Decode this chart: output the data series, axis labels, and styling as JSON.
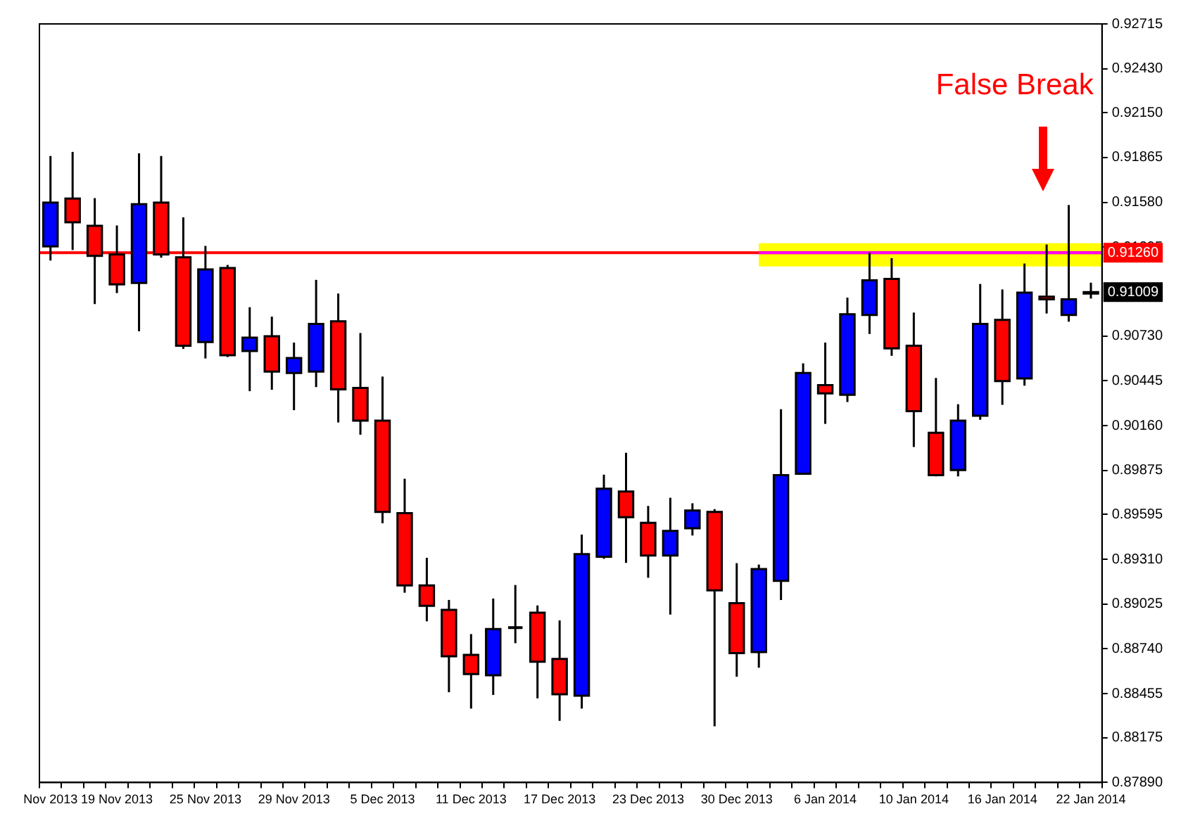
{
  "chart_data": {
    "type": "candlestick",
    "categories": [
      "Nov 2013",
      null,
      null,
      "19 Nov 2013",
      null,
      null,
      null,
      "25 Nov 2013",
      null,
      null,
      null,
      "29 Nov 2013",
      null,
      null,
      null,
      "5 Dec 2013",
      null,
      null,
      null,
      "11 Dec 2013",
      null,
      null,
      null,
      "17 Dec 2013",
      null,
      null,
      null,
      "23 Dec 2013",
      null,
      null,
      null,
      "30 Dec 2013",
      null,
      null,
      null,
      "6 Jan 2014",
      null,
      null,
      null,
      "10 Jan 2014",
      null,
      null,
      null,
      "16 Jan 2014",
      null,
      null,
      null,
      "22 Jan 2014"
    ],
    "ohlc": [
      [
        0.913,
        0.91875,
        0.9121,
        0.91578
      ],
      [
        0.91604,
        0.91901,
        0.91277,
        0.91453
      ],
      [
        0.91431,
        0.91607,
        0.90933,
        0.9124
      ],
      [
        0.91249,
        0.91433,
        0.91003,
        0.91058
      ],
      [
        0.91067,
        0.91892,
        0.9076,
        0.91569
      ],
      [
        0.91578,
        0.91875,
        0.91228,
        0.91249
      ],
      [
        0.91231,
        0.91485,
        0.90648,
        0.90668
      ],
      [
        0.90691,
        0.91303,
        0.90587,
        0.91153
      ],
      [
        0.91162,
        0.91182,
        0.90596,
        0.90608
      ],
      [
        0.90634,
        0.90913,
        0.90379,
        0.9072
      ],
      [
        0.90729,
        0.90853,
        0.90388,
        0.90504
      ],
      [
        0.90495,
        0.90688,
        0.90258,
        0.9059
      ],
      [
        0.90504,
        0.91087,
        0.90405,
        0.90807
      ],
      [
        0.90824,
        0.91,
        0.9018,
        0.90391
      ],
      [
        0.904,
        0.90749,
        0.90102,
        0.90192
      ],
      [
        0.90192,
        0.90472,
        0.89539,
        0.89611
      ],
      [
        0.89603,
        0.89822,
        0.89097,
        0.89144
      ],
      [
        0.89144,
        0.89319,
        0.88915,
        0.89014
      ],
      [
        0.88988,
        0.89051,
        0.88464,
        0.88693
      ],
      [
        0.88702,
        0.88834,
        0.8836,
        0.8858
      ],
      [
        0.88572,
        0.8906,
        0.88447,
        0.88866
      ],
      [
        0.88875,
        0.89146,
        0.88776,
        0.88875
      ],
      [
        0.8897,
        0.89016,
        0.88425,
        0.88658
      ],
      [
        0.88676,
        0.88921,
        0.88282,
        0.88451
      ],
      [
        0.88442,
        0.89467,
        0.8836,
        0.89343
      ],
      [
        0.89326,
        0.89848,
        0.89313,
        0.89759
      ],
      [
        0.89741,
        0.89987,
        0.89287,
        0.89577
      ],
      [
        0.89542,
        0.89649,
        0.89192,
        0.89334
      ],
      [
        0.89334,
        0.89701,
        0.88958,
        0.8949
      ],
      [
        0.89507,
        0.89666,
        0.89461,
        0.8962
      ],
      [
        0.89611,
        0.89629,
        0.88248,
        0.89112
      ],
      [
        0.89031,
        0.89285,
        0.88563,
        0.88713
      ],
      [
        0.88719,
        0.89276,
        0.8862,
        0.89248
      ],
      [
        0.89172,
        0.90264,
        0.89051,
        0.89845
      ],
      [
        0.89854,
        0.90556,
        0.8985,
        0.90495
      ],
      [
        0.90417,
        0.90688,
        0.90171,
        0.90365
      ],
      [
        0.90356,
        0.90974,
        0.9031,
        0.90868
      ],
      [
        0.90864,
        0.9126,
        0.90743,
        0.91084
      ],
      [
        0.91093,
        0.91225,
        0.90604,
        0.90651
      ],
      [
        0.90668,
        0.90879,
        0.90024,
        0.90252
      ],
      [
        0.90114,
        0.90463,
        0.89837,
        0.89845
      ],
      [
        0.89877,
        0.90296,
        0.89837,
        0.90192
      ],
      [
        0.90223,
        0.91061,
        0.90197,
        0.90807
      ],
      [
        0.90833,
        0.91026,
        0.90292,
        0.90443
      ],
      [
        0.9046,
        0.91191,
        0.90414,
        0.91006
      ],
      [
        0.9098,
        0.91312,
        0.90873,
        0.90963
      ],
      [
        0.90864,
        0.91563,
        0.90821,
        0.90963
      ],
      [
        0.91,
        0.91069,
        0.90968,
        0.91009
      ]
    ],
    "colors": [
      "#0000ff",
      "#ff0000",
      "#ff0000",
      "#ff0000",
      "#0000ff",
      "#ff0000",
      "#ff0000",
      "#0000ff",
      "#ff0000",
      "#0000ff",
      "#ff0000",
      "#0000ff",
      "#0000ff",
      "#ff0000",
      "#ff0000",
      "#ff0000",
      "#ff0000",
      "#ff0000",
      "#ff0000",
      "#ff0000",
      "#0000ff",
      "#000000",
      "#ff0000",
      "#ff0000",
      "#0000ff",
      "#0000ff",
      "#ff0000",
      "#ff0000",
      "#0000ff",
      "#0000ff",
      "#ff0000",
      "#ff0000",
      "#0000ff",
      "#0000ff",
      "#0000ff",
      "#ff0000",
      "#0000ff",
      "#0000ff",
      "#ff0000",
      "#ff0000",
      "#ff0000",
      "#0000ff",
      "#0000ff",
      "#ff0000",
      "#0000ff",
      "#ff0000",
      "#0000ff",
      "#0000ff"
    ],
    "ylim": [
      0.8789,
      0.92715
    ],
    "yticks": [
      0.92715,
      {
        "value": 0.9243,
        "label": "0.92430"
      },
      {
        "value": 0.9215,
        "label": "0.92150"
      },
      0.91865,
      {
        "value": 0.9158,
        "label": "0.91580"
      },
      0.91295,
      {
        "value": 0.9073,
        "label": "0.90730"
      },
      0.90445,
      {
        "value": 0.9016,
        "label": "0.90160"
      },
      0.89875,
      0.89595,
      {
        "value": 0.8931,
        "label": "0.89310"
      },
      0.89025,
      {
        "value": 0.8874,
        "label": "0.88740"
      },
      0.88455,
      0.88175,
      {
        "value": 0.8789,
        "label": "0.87890"
      }
    ],
    "bands": [
      {
        "axis": "y",
        "from": 0.91173,
        "to": 0.9132,
        "color": "#ffff00"
      }
    ],
    "ref_lines": [
      {
        "axis": "y",
        "value": 0.9126,
        "label": "0.91260",
        "color": "#ff0000"
      },
      {
        "axis": "y",
        "value": 0.9126,
        "color": "#ff00ff"
      }
    ],
    "annotations": [
      "False Break",
      {
        "text": "0.91009",
        "y": 0.91009
      }
    ],
    "grid": false,
    "legend": false
  }
}
